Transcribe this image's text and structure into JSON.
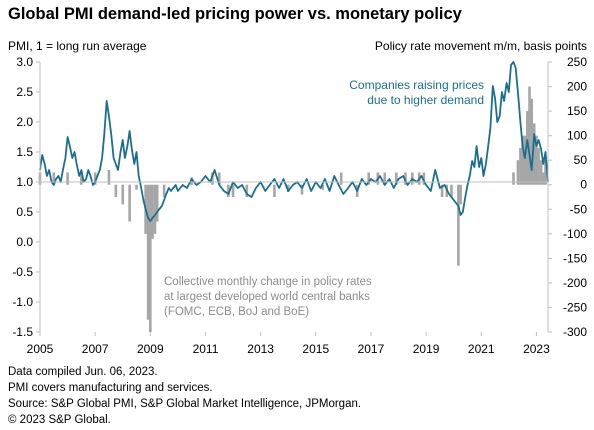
{
  "title": "Global PMI demand-led pricing power vs. monetary policy",
  "footer": {
    "line1": "Data compiled Jun. 06, 2023.",
    "line2": "PMI covers manufacturing and services.",
    "line3": "Source: S&P Global PMI, S&P Global Market Intelligence, JPMorgan.",
    "line4": "© 2023 S&P Global."
  },
  "colors": {
    "line": "#1a6f8e",
    "bars": "#a6a6a6",
    "axis": "#bfbfbf",
    "annotation_line": "#1a6f8e",
    "annotation_bars": "#8c8c8c"
  },
  "chart_data": {
    "type": "bar+line",
    "left_axis": {
      "label": "PMI, 1 = long run average",
      "ylim": [
        -1.5,
        3.0
      ],
      "ticks": [
        -1.5,
        -1.0,
        -0.5,
        0.0,
        0.5,
        1.0,
        1.5,
        2.0,
        2.5,
        3.0
      ],
      "tick_labels": [
        "-1.5",
        "-1.0",
        "-0.5",
        "0.0",
        "0.5",
        "1.0",
        "1.5",
        "2.0",
        "2.5",
        "3.0"
      ]
    },
    "right_axis": {
      "label": "Policy rate movement  m/m, basis points",
      "ylim": [
        -300,
        250
      ],
      "ticks": [
        -300,
        -250,
        -200,
        -150,
        -100,
        -50,
        0,
        50,
        100,
        150,
        200,
        250
      ],
      "tick_labels": [
        "-300",
        "-250",
        "-200",
        "-150",
        "-100",
        "-50",
        "0",
        "50",
        "100",
        "150",
        "200",
        "250"
      ]
    },
    "x_axis": {
      "range": [
        2005.0,
        2023.42
      ],
      "ticks": [
        2005,
        2007,
        2009,
        2011,
        2013,
        2015,
        2017,
        2019,
        2021,
        2023
      ],
      "tick_labels": [
        "2005",
        "2007",
        "2009",
        "2011",
        "2013",
        "2015",
        "2017",
        "2019",
        "2021",
        "2023"
      ]
    },
    "annotations": {
      "line_label_1": "Companies raising prices",
      "line_label_2": "due to higher demand",
      "bars_label_1": "Collective monthly change in policy rates",
      "bars_label_2": "at largest developed world central banks",
      "bars_label_3": "(FOMC, ECB, BoJ and BoE)"
    },
    "series": [
      {
        "axis": "right",
        "kind": "bar",
        "points": [
          [
            2005.0,
            25
          ],
          [
            2005.5,
            25
          ],
          [
            2006.0,
            25
          ],
          [
            2006.5,
            25
          ],
          [
            2007.0,
            25
          ],
          [
            2007.5,
            30
          ],
          [
            2007.75,
            -25
          ],
          [
            2008.0,
            -40
          ],
          [
            2008.25,
            -75
          ],
          [
            2008.5,
            -10
          ],
          [
            2008.83,
            -100
          ],
          [
            2008.92,
            -275
          ],
          [
            2009.0,
            -300
          ],
          [
            2009.08,
            -110
          ],
          [
            2009.17,
            -100
          ],
          [
            2009.25,
            -75
          ],
          [
            2009.5,
            -25
          ],
          [
            2010.5,
            15
          ],
          [
            2011.25,
            25
          ],
          [
            2011.5,
            25
          ],
          [
            2011.83,
            -25
          ],
          [
            2012.0,
            -25
          ],
          [
            2012.5,
            -25
          ],
          [
            2013.5,
            -25
          ],
          [
            2014.0,
            -15
          ],
          [
            2014.5,
            -20
          ],
          [
            2015.25,
            -10
          ],
          [
            2015.92,
            25
          ],
          [
            2016.5,
            -25
          ],
          [
            2016.92,
            25
          ],
          [
            2017.25,
            25
          ],
          [
            2017.5,
            25
          ],
          [
            2017.92,
            25
          ],
          [
            2018.25,
            25
          ],
          [
            2018.5,
            25
          ],
          [
            2018.75,
            25
          ],
          [
            2018.92,
            25
          ],
          [
            2019.58,
            -25
          ],
          [
            2019.75,
            -25
          ],
          [
            2019.92,
            -25
          ],
          [
            2020.17,
            -165
          ],
          [
            2020.25,
            -40
          ],
          [
            2022.17,
            25
          ],
          [
            2022.33,
            50
          ],
          [
            2022.42,
            75
          ],
          [
            2022.5,
            100
          ],
          [
            2022.58,
            100
          ],
          [
            2022.67,
            150
          ],
          [
            2022.75,
            200
          ],
          [
            2022.83,
            175
          ],
          [
            2022.92,
            125
          ],
          [
            2023.0,
            100
          ],
          [
            2023.08,
            75
          ],
          [
            2023.17,
            50
          ],
          [
            2023.25,
            25
          ],
          [
            2023.33,
            50
          ]
        ]
      },
      {
        "axis": "left",
        "kind": "line",
        "points": [
          [
            2005.0,
            1.2
          ],
          [
            2005.08,
            1.45
          ],
          [
            2005.17,
            1.3
          ],
          [
            2005.25,
            1.1
          ],
          [
            2005.33,
            1.2
          ],
          [
            2005.42,
            1.0
          ],
          [
            2005.5,
            0.95
          ],
          [
            2005.58,
            1.05
          ],
          [
            2005.67,
            1.1
          ],
          [
            2005.75,
            1.0
          ],
          [
            2005.83,
            1.2
          ],
          [
            2005.92,
            1.4
          ],
          [
            2006.0,
            1.75
          ],
          [
            2006.08,
            1.6
          ],
          [
            2006.17,
            1.4
          ],
          [
            2006.25,
            1.5
          ],
          [
            2006.33,
            1.3
          ],
          [
            2006.42,
            1.1
          ],
          [
            2006.5,
            1.2
          ],
          [
            2006.58,
            1.0
          ],
          [
            2006.67,
            1.05
          ],
          [
            2006.75,
            1.2
          ],
          [
            2006.83,
            1.1
          ],
          [
            2006.92,
            0.95
          ],
          [
            2007.0,
            1.0
          ],
          [
            2007.08,
            1.1
          ],
          [
            2007.17,
            1.2
          ],
          [
            2007.25,
            1.4
          ],
          [
            2007.33,
            1.8
          ],
          [
            2007.42,
            2.35
          ],
          [
            2007.5,
            2.1
          ],
          [
            2007.58,
            1.8
          ],
          [
            2007.67,
            1.4
          ],
          [
            2007.75,
            1.3
          ],
          [
            2007.83,
            1.2
          ],
          [
            2007.92,
            1.5
          ],
          [
            2008.0,
            1.7
          ],
          [
            2008.08,
            1.4
          ],
          [
            2008.17,
            1.6
          ],
          [
            2008.25,
            1.85
          ],
          [
            2008.33,
            1.55
          ],
          [
            2008.42,
            1.3
          ],
          [
            2008.5,
            1.5
          ],
          [
            2008.58,
            1.1
          ],
          [
            2008.67,
            0.9
          ],
          [
            2008.75,
            0.7
          ],
          [
            2008.83,
            0.55
          ],
          [
            2008.92,
            0.4
          ],
          [
            2009.0,
            0.35
          ],
          [
            2009.08,
            0.4
          ],
          [
            2009.17,
            0.45
          ],
          [
            2009.25,
            0.5
          ],
          [
            2009.33,
            0.55
          ],
          [
            2009.42,
            0.6
          ],
          [
            2009.5,
            0.7
          ],
          [
            2009.58,
            0.8
          ],
          [
            2009.67,
            0.9
          ],
          [
            2009.75,
            0.85
          ],
          [
            2009.83,
            0.9
          ],
          [
            2009.92,
            0.95
          ],
          [
            2010.0,
            0.85
          ],
          [
            2010.17,
            0.95
          ],
          [
            2010.33,
            0.9
          ],
          [
            2010.5,
            1.05
          ],
          [
            2010.67,
            0.95
          ],
          [
            2010.83,
            1.0
          ],
          [
            2011.0,
            1.1
          ],
          [
            2011.17,
            1.0
          ],
          [
            2011.33,
            1.2
          ],
          [
            2011.5,
            0.95
          ],
          [
            2011.67,
            0.85
          ],
          [
            2011.83,
            0.8
          ],
          [
            2012.0,
            1.0
          ],
          [
            2012.17,
            0.9
          ],
          [
            2012.33,
            0.95
          ],
          [
            2012.5,
            0.8
          ],
          [
            2012.67,
            0.75
          ],
          [
            2012.83,
            0.9
          ],
          [
            2013.0,
            1.0
          ],
          [
            2013.17,
            0.85
          ],
          [
            2013.33,
            0.95
          ],
          [
            2013.5,
            1.05
          ],
          [
            2013.67,
            0.9
          ],
          [
            2013.83,
            1.05
          ],
          [
            2014.0,
            0.85
          ],
          [
            2014.17,
            0.95
          ],
          [
            2014.33,
            1.0
          ],
          [
            2014.5,
            0.9
          ],
          [
            2014.67,
            1.05
          ],
          [
            2014.83,
            0.85
          ],
          [
            2015.0,
            1.0
          ],
          [
            2015.17,
            0.9
          ],
          [
            2015.33,
            1.05
          ],
          [
            2015.5,
            0.85
          ],
          [
            2015.67,
            1.1
          ],
          [
            2015.83,
            0.95
          ],
          [
            2016.0,
            0.8
          ],
          [
            2016.17,
            0.9
          ],
          [
            2016.33,
            1.0
          ],
          [
            2016.5,
            0.85
          ],
          [
            2016.67,
            1.05
          ],
          [
            2016.83,
            0.95
          ],
          [
            2017.0,
            1.05
          ],
          [
            2017.17,
            1.0
          ],
          [
            2017.33,
            1.1
          ],
          [
            2017.5,
            0.95
          ],
          [
            2017.67,
            1.05
          ],
          [
            2017.83,
            0.9
          ],
          [
            2018.0,
            1.05
          ],
          [
            2018.17,
            1.1
          ],
          [
            2018.33,
            0.95
          ],
          [
            2018.5,
            1.05
          ],
          [
            2018.67,
            1.0
          ],
          [
            2018.83,
            1.1
          ],
          [
            2019.0,
            0.95
          ],
          [
            2019.17,
            0.85
          ],
          [
            2019.33,
            1.2
          ],
          [
            2019.5,
            0.9
          ],
          [
            2019.67,
            0.95
          ],
          [
            2019.83,
            0.8
          ],
          [
            2020.0,
            0.7
          ],
          [
            2020.17,
            0.6
          ],
          [
            2020.25,
            0.45
          ],
          [
            2020.33,
            0.5
          ],
          [
            2020.42,
            0.75
          ],
          [
            2020.5,
            0.95
          ],
          [
            2020.58,
            1.1
          ],
          [
            2020.67,
            1.35
          ],
          [
            2020.75,
            1.25
          ],
          [
            2020.83,
            1.6
          ],
          [
            2020.92,
            1.25
          ],
          [
            2021.0,
            1.4
          ],
          [
            2021.08,
            1.1
          ],
          [
            2021.17,
            1.3
          ],
          [
            2021.25,
            1.6
          ],
          [
            2021.33,
            1.9
          ],
          [
            2021.42,
            2.6
          ],
          [
            2021.5,
            2.4
          ],
          [
            2021.58,
            2.0
          ],
          [
            2021.67,
            2.1
          ],
          [
            2021.75,
            2.5
          ],
          [
            2021.83,
            2.35
          ],
          [
            2021.92,
            2.65
          ],
          [
            2022.0,
            2.5
          ],
          [
            2022.08,
            2.95
          ],
          [
            2022.17,
            3.0
          ],
          [
            2022.25,
            2.9
          ],
          [
            2022.33,
            2.5
          ],
          [
            2022.42,
            2.0
          ],
          [
            2022.5,
            1.6
          ],
          [
            2022.58,
            1.4
          ],
          [
            2022.67,
            1.7
          ],
          [
            2022.75,
            1.45
          ],
          [
            2022.83,
            1.2
          ],
          [
            2022.92,
            1.8
          ],
          [
            2023.0,
            1.6
          ],
          [
            2023.08,
            1.7
          ],
          [
            2023.17,
            1.55
          ],
          [
            2023.25,
            1.3
          ],
          [
            2023.33,
            1.5
          ],
          [
            2023.42,
            1.0
          ]
        ]
      }
    ]
  }
}
